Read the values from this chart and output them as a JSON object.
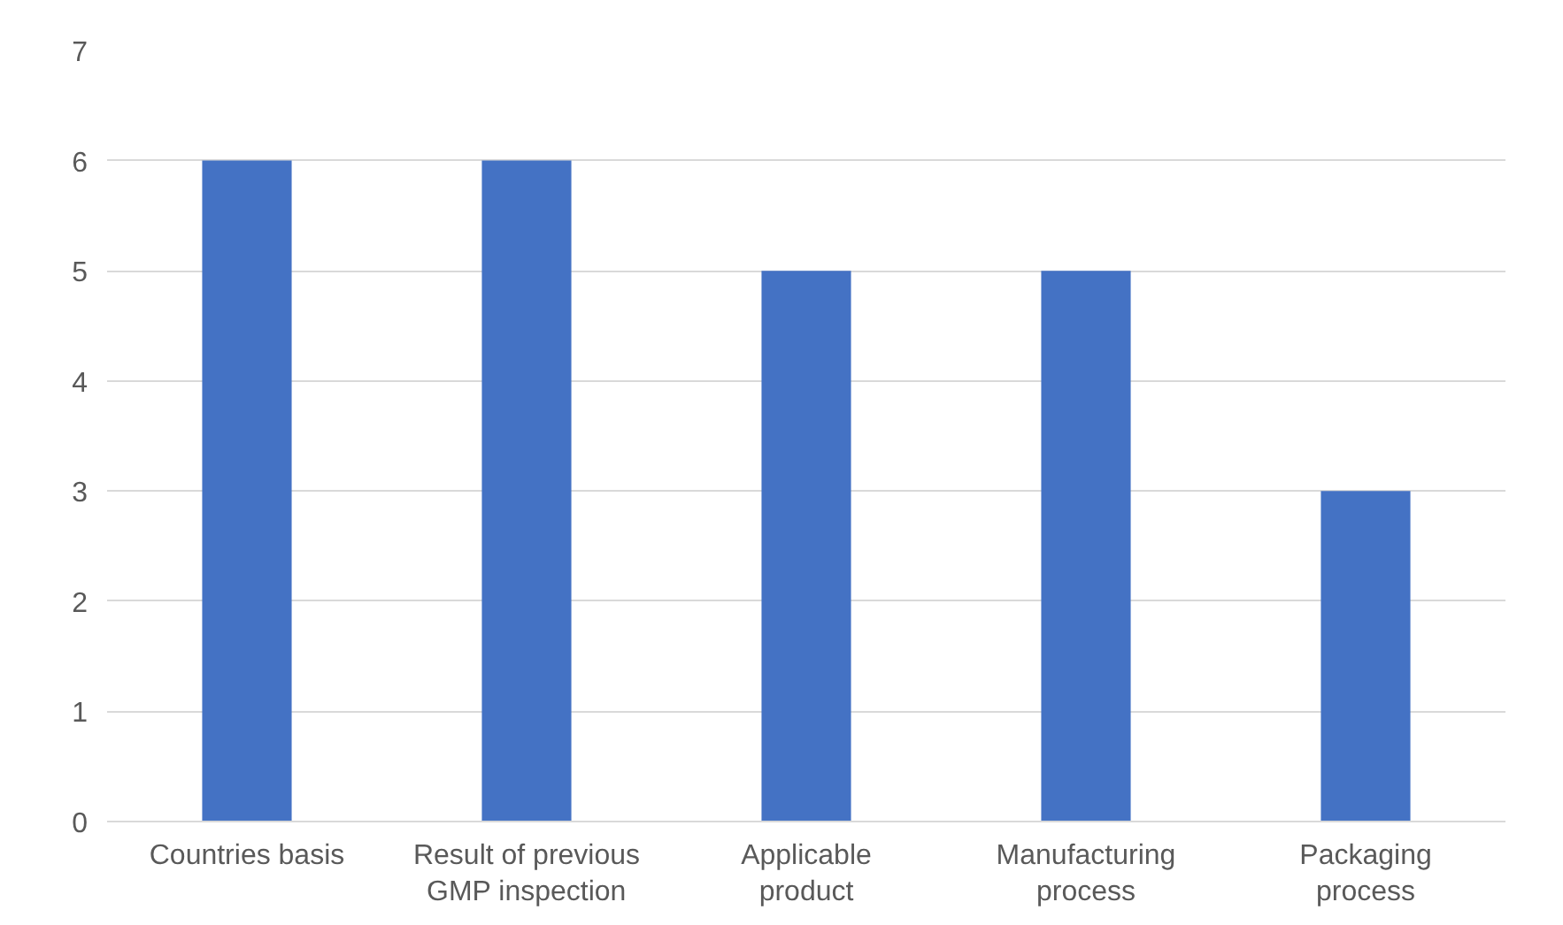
{
  "chart_data": {
    "type": "bar",
    "categories": [
      "Countries basis",
      "Result of previous\nGMP inspection",
      "Applicable\nproduct",
      "Manufacturing\nprocess",
      "Packaging\nprocess"
    ],
    "values": [
      6,
      6,
      5,
      5,
      3
    ],
    "color": "#4472c4",
    "ylim": [
      0,
      7
    ],
    "yticks": [
      0,
      1,
      2,
      3,
      4,
      5,
      6,
      7
    ],
    "grid": "y"
  }
}
